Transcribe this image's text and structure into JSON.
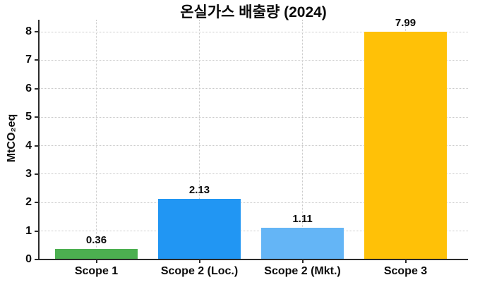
{
  "chart_data": {
    "type": "bar",
    "title": "온실가스 배출량 (2024)",
    "ylabel": "MtCO₂eq",
    "xlabel": "",
    "categories": [
      "Scope 1",
      "Scope 2 (Loc.)",
      "Scope 2 (Mkt.)",
      "Scope 3"
    ],
    "values": [
      0.36,
      2.13,
      1.11,
      7.99
    ],
    "value_labels": [
      "0.36",
      "2.13",
      "1.11",
      "7.99"
    ],
    "bar_colors": [
      "#4caf50",
      "#2196f3",
      "#64b5f6",
      "#ffc107"
    ],
    "ylim": [
      0,
      8
    ],
    "yticks": [
      0,
      1,
      2,
      3,
      4,
      5,
      6,
      7,
      8
    ],
    "grid": true,
    "grid_style": "dotted",
    "legend": "none"
  },
  "colors": {
    "background": "#ffffff",
    "text": "#0a0a0a",
    "gridline": "#c9c9c9",
    "axis": "#2b2b2b"
  }
}
